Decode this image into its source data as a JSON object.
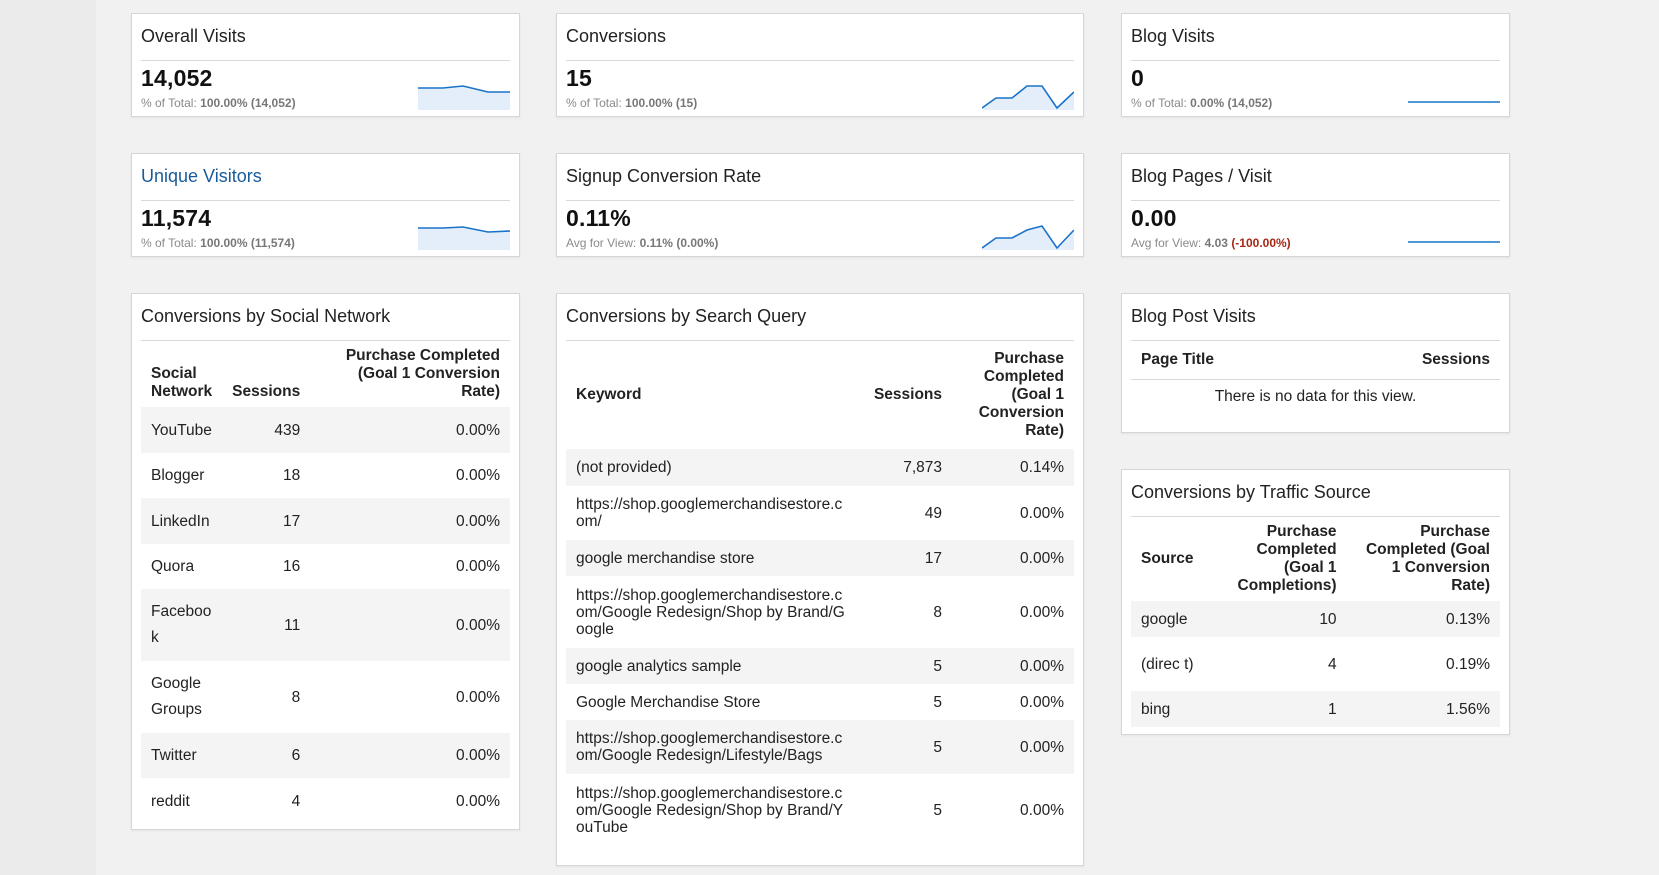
{
  "scorecards": {
    "overall_visits": {
      "title": "Overall Visits",
      "value": "14,052",
      "sub_label": "% of Total:",
      "sub_value": "100.00% (14,052)"
    },
    "conversions": {
      "title": "Conversions",
      "value": "15",
      "sub_label": "% of Total:",
      "sub_value": "100.00% (15)"
    },
    "blog_visits": {
      "title": "Blog Visits",
      "value": "0",
      "sub_label": "% of Total:",
      "sub_value": "0.00% (14,052)"
    },
    "unique_visitors": {
      "title": "Unique Visitors",
      "value": "11,574",
      "sub_label": "% of Total:",
      "sub_value": "100.00% (11,574)"
    },
    "signup_conversion_rate": {
      "title": "Signup Conversion Rate",
      "value": "0.11%",
      "sub_label": "Avg for View:",
      "sub_value": "0.11%",
      "sub_delta": "(0.00%)"
    },
    "blog_pages_visit": {
      "title": "Blog Pages / Visit",
      "value": "0.00",
      "sub_label": "Avg for View:",
      "sub_value": "4.03",
      "sub_delta": "(-100.00%)"
    }
  },
  "social": {
    "title": "Conversions by Social Network",
    "headers": [
      "Social Network",
      "Sessions",
      "Purchase Completed (Goal 1 Conversion Rate)"
    ],
    "rows": [
      [
        "YouTube",
        "439",
        "0.00%"
      ],
      [
        "Blogger",
        "18",
        "0.00%"
      ],
      [
        "LinkedIn",
        "17",
        "0.00%"
      ],
      [
        "Quora",
        "16",
        "0.00%"
      ],
      [
        "Faceboo k",
        "11",
        "0.00%"
      ],
      [
        "Google Groups",
        "8",
        "0.00%"
      ],
      [
        "Twitter",
        "6",
        "0.00%"
      ],
      [
        "reddit",
        "4",
        "0.00%"
      ]
    ]
  },
  "search": {
    "title": "Conversions by Search Query",
    "headers": [
      "Keyword",
      "Sessions",
      "Purchase Completed (Goal 1 Conversion Rate)"
    ],
    "rows": [
      [
        "(not provided)",
        "7,873",
        "0.14%"
      ],
      [
        "https://shop.googlemerchandisestore.com/",
        "49",
        "0.00%"
      ],
      [
        "google merchandise store",
        "17",
        "0.00%"
      ],
      [
        "https://shop.googlemerchandisestore.com/Google Redesign/Shop by Brand/Google",
        "8",
        "0.00%"
      ],
      [
        "google analytics sample",
        "5",
        "0.00%"
      ],
      [
        "Google Merchandise Store",
        "5",
        "0.00%"
      ],
      [
        "https://shop.googlemerchandisestore.com/Google Redesign/Lifestyle/Bags",
        "5",
        "0.00%"
      ],
      [
        "https://shop.googlemerchandisestore.com/Google Redesign/Shop by Brand/YouTube",
        "5",
        "0.00%"
      ]
    ]
  },
  "blog_posts": {
    "title": "Blog Post Visits",
    "headers": [
      "Page Title",
      "Sessions"
    ],
    "empty_message": "There is no data for this view."
  },
  "traffic": {
    "title": "Conversions by Traffic Source",
    "headers": [
      "Source",
      "Purchase Completed (Goal 1 Completions)",
      "Purchase Completed (Goal 1 Conversion Rate)"
    ],
    "rows": [
      [
        "google",
        "10",
        "0.13%"
      ],
      [
        "(direc t)",
        "4",
        "0.19%"
      ],
      [
        "bing",
        "1",
        "1.56%"
      ]
    ]
  },
  "colors": {
    "spark_line": "#1a73c8",
    "spark_fill": "#e3eefa",
    "negative": "#a52714",
    "link_title": "#1a5b9a"
  }
}
